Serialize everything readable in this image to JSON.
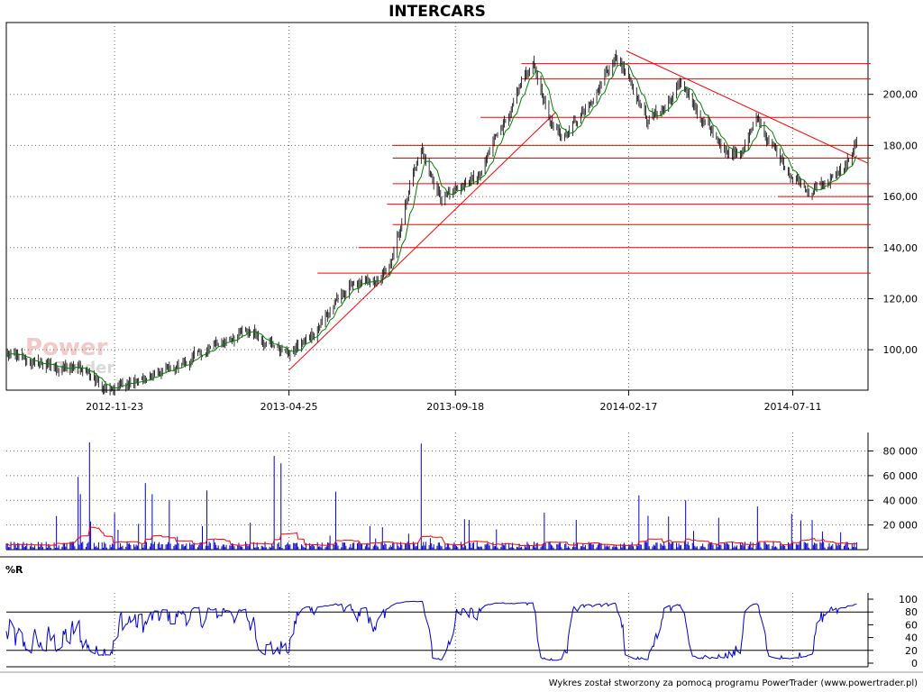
{
  "chart_data": [
    {
      "type": "candlestick",
      "title": "INTERCARS",
      "x_tick_labels": [
        "2012-11-23",
        "2013-04-25",
        "2013-09-18",
        "2014-02-17",
        "2014-07-11"
      ],
      "x_range": [
        "2012-08-20",
        "2014-09-15"
      ],
      "y_tick_labels": [
        "100,00",
        "120,00",
        "140,00",
        "160,00",
        "180,00",
        "200,00"
      ],
      "ylim": [
        87,
        220
      ],
      "grid": true,
      "price_path": [
        [
          "2012-08-20",
          98
        ],
        [
          "2012-09-10",
          95
        ],
        [
          "2012-10-05",
          93
        ],
        [
          "2012-10-29",
          92
        ],
        [
          "2012-11-10",
          87
        ],
        [
          "2012-11-23",
          86
        ],
        [
          "2012-12-20",
          88
        ],
        [
          "2013-01-15",
          93
        ],
        [
          "2013-02-10",
          99
        ],
        [
          "2013-03-10",
          106
        ],
        [
          "2013-03-25",
          107
        ],
        [
          "2013-04-15",
          101
        ],
        [
          "2013-04-25",
          98
        ],
        [
          "2013-05-15",
          106
        ],
        [
          "2013-06-05",
          118
        ],
        [
          "2013-06-20",
          126
        ],
        [
          "2013-07-10",
          125
        ],
        [
          "2013-07-25",
          135
        ],
        [
          "2013-08-10",
          165
        ],
        [
          "2013-08-20",
          178
        ],
        [
          "2013-09-05",
          160
        ],
        [
          "2013-09-18",
          163
        ],
        [
          "2013-10-10",
          168
        ],
        [
          "2013-10-25",
          185
        ],
        [
          "2013-11-10",
          198
        ],
        [
          "2013-11-25",
          212
        ],
        [
          "2013-12-10",
          190
        ],
        [
          "2013-12-20",
          182
        ],
        [
          "2014-01-05",
          192
        ],
        [
          "2014-01-20",
          202
        ],
        [
          "2014-02-05",
          215
        ],
        [
          "2014-02-17",
          208
        ],
        [
          "2014-03-05",
          190
        ],
        [
          "2014-03-20",
          195
        ],
        [
          "2014-04-05",
          205
        ],
        [
          "2014-04-20",
          190
        ],
        [
          "2014-05-10",
          180
        ],
        [
          "2014-05-25",
          176
        ],
        [
          "2014-06-10",
          190
        ],
        [
          "2014-06-25",
          178
        ],
        [
          "2014-07-11",
          168
        ],
        [
          "2014-07-25",
          163
        ],
        [
          "2014-08-10",
          165
        ],
        [
          "2014-08-25",
          172
        ],
        [
          "2014-09-05",
          181
        ]
      ],
      "horizontal_levels": [
        {
          "value": 212,
          "from": "2013-11-15"
        },
        {
          "value": 206,
          "from": "2013-11-15"
        },
        {
          "value": 191,
          "from": "2013-10-10"
        },
        {
          "value": 180,
          "from": "2013-07-25"
        },
        {
          "value": 175,
          "from": "2013-07-25"
        },
        {
          "value": 165,
          "from": "2013-07-25"
        },
        {
          "value": 160,
          "from": "2014-06-28"
        },
        {
          "value": 157,
          "from": "2013-07-20"
        },
        {
          "value": 149,
          "from": "2013-07-25"
        },
        {
          "value": 140,
          "from": "2013-06-25"
        },
        {
          "value": 130,
          "from": "2013-05-20"
        }
      ],
      "trend_lines": [
        {
          "from": [
            "2013-04-25",
            92
          ],
          "to": [
            "2013-12-15",
            193
          ]
        },
        {
          "from": [
            "2014-02-15",
            217
          ],
          "to": [
            "2014-09-15",
            173
          ]
        }
      ],
      "series_colors": {
        "candles": "#000000",
        "moving_average": "#008000",
        "levels": "#ff0000"
      }
    },
    {
      "type": "bar",
      "panel": "volume",
      "y_tick_labels": [
        "20 000",
        "40 000",
        "60 000",
        "80 000"
      ],
      "ylim": [
        0,
        95000
      ],
      "spikes": [
        [
          "2012-10-22",
          59000
        ],
        [
          "2012-10-24",
          45000
        ],
        [
          "2012-11-01",
          87000
        ],
        [
          "2012-12-20",
          54000
        ],
        [
          "2012-12-26",
          45000
        ],
        [
          "2013-01-10",
          40000
        ],
        [
          "2013-02-12",
          48000
        ],
        [
          "2013-04-12",
          76000
        ],
        [
          "2013-04-18",
          70000
        ],
        [
          "2013-06-05",
          47000
        ],
        [
          "2013-08-19",
          86000
        ],
        [
          "2013-12-05",
          30000
        ],
        [
          "2014-02-26",
          44000
        ],
        [
          "2014-04-08",
          40000
        ],
        [
          "2014-06-10",
          35000
        ],
        [
          "2014-07-28",
          24000
        ]
      ],
      "series_colors": {
        "volume": "#0000cc",
        "moving_average": "#ff0000"
      }
    },
    {
      "type": "line",
      "panel": "indicator",
      "label": "%R",
      "y_tick_labels": [
        "0",
        "20",
        "40",
        "60",
        "80",
        "100"
      ],
      "ylim": [
        0,
        100
      ],
      "reference_lines": [
        20,
        80
      ],
      "series_colors": {
        "line": "#0000cc"
      }
    }
  ],
  "footer": "Wykres został stworzony za pomocą programu PowerTrader (www.powertrader.pl)",
  "watermark": {
    "line1": "Power",
    "line2": "Trader"
  }
}
